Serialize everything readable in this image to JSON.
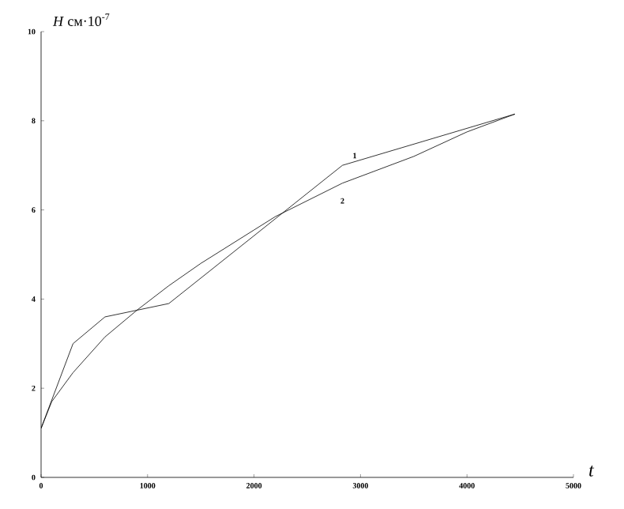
{
  "chart_data": {
    "type": "line",
    "xlabel": "t",
    "ylabel": "*H* см·10$^{-7}$",
    "series": [
      {
        "name": "1",
        "color": "#000000",
        "x": [
          0,
          300,
          600,
          1200,
          2830,
          4450
        ],
        "values": [
          1.1,
          3.0,
          3.6,
          3.9,
          7.0,
          8.15
        ]
      },
      {
        "name": "2",
        "color": "#000000",
        "x": [
          0,
          100,
          300,
          600,
          900,
          1200,
          1500,
          2000,
          2200,
          2830,
          3500,
          4000,
          4450
        ],
        "values": [
          1.1,
          1.7,
          2.35,
          3.15,
          3.75,
          4.3,
          4.8,
          5.55,
          5.85,
          6.6,
          7.2,
          7.75,
          8.15
        ]
      }
    ],
    "xlim": [
      0,
      5000
    ],
    "ylim": [
      0,
      10
    ],
    "xticks": [
      0,
      1000,
      2000,
      3000,
      4000,
      5000
    ],
    "yticks": [
      0,
      2,
      4,
      6,
      8,
      10
    ],
    "grid": false,
    "marker": "none",
    "line_style": "solid"
  }
}
